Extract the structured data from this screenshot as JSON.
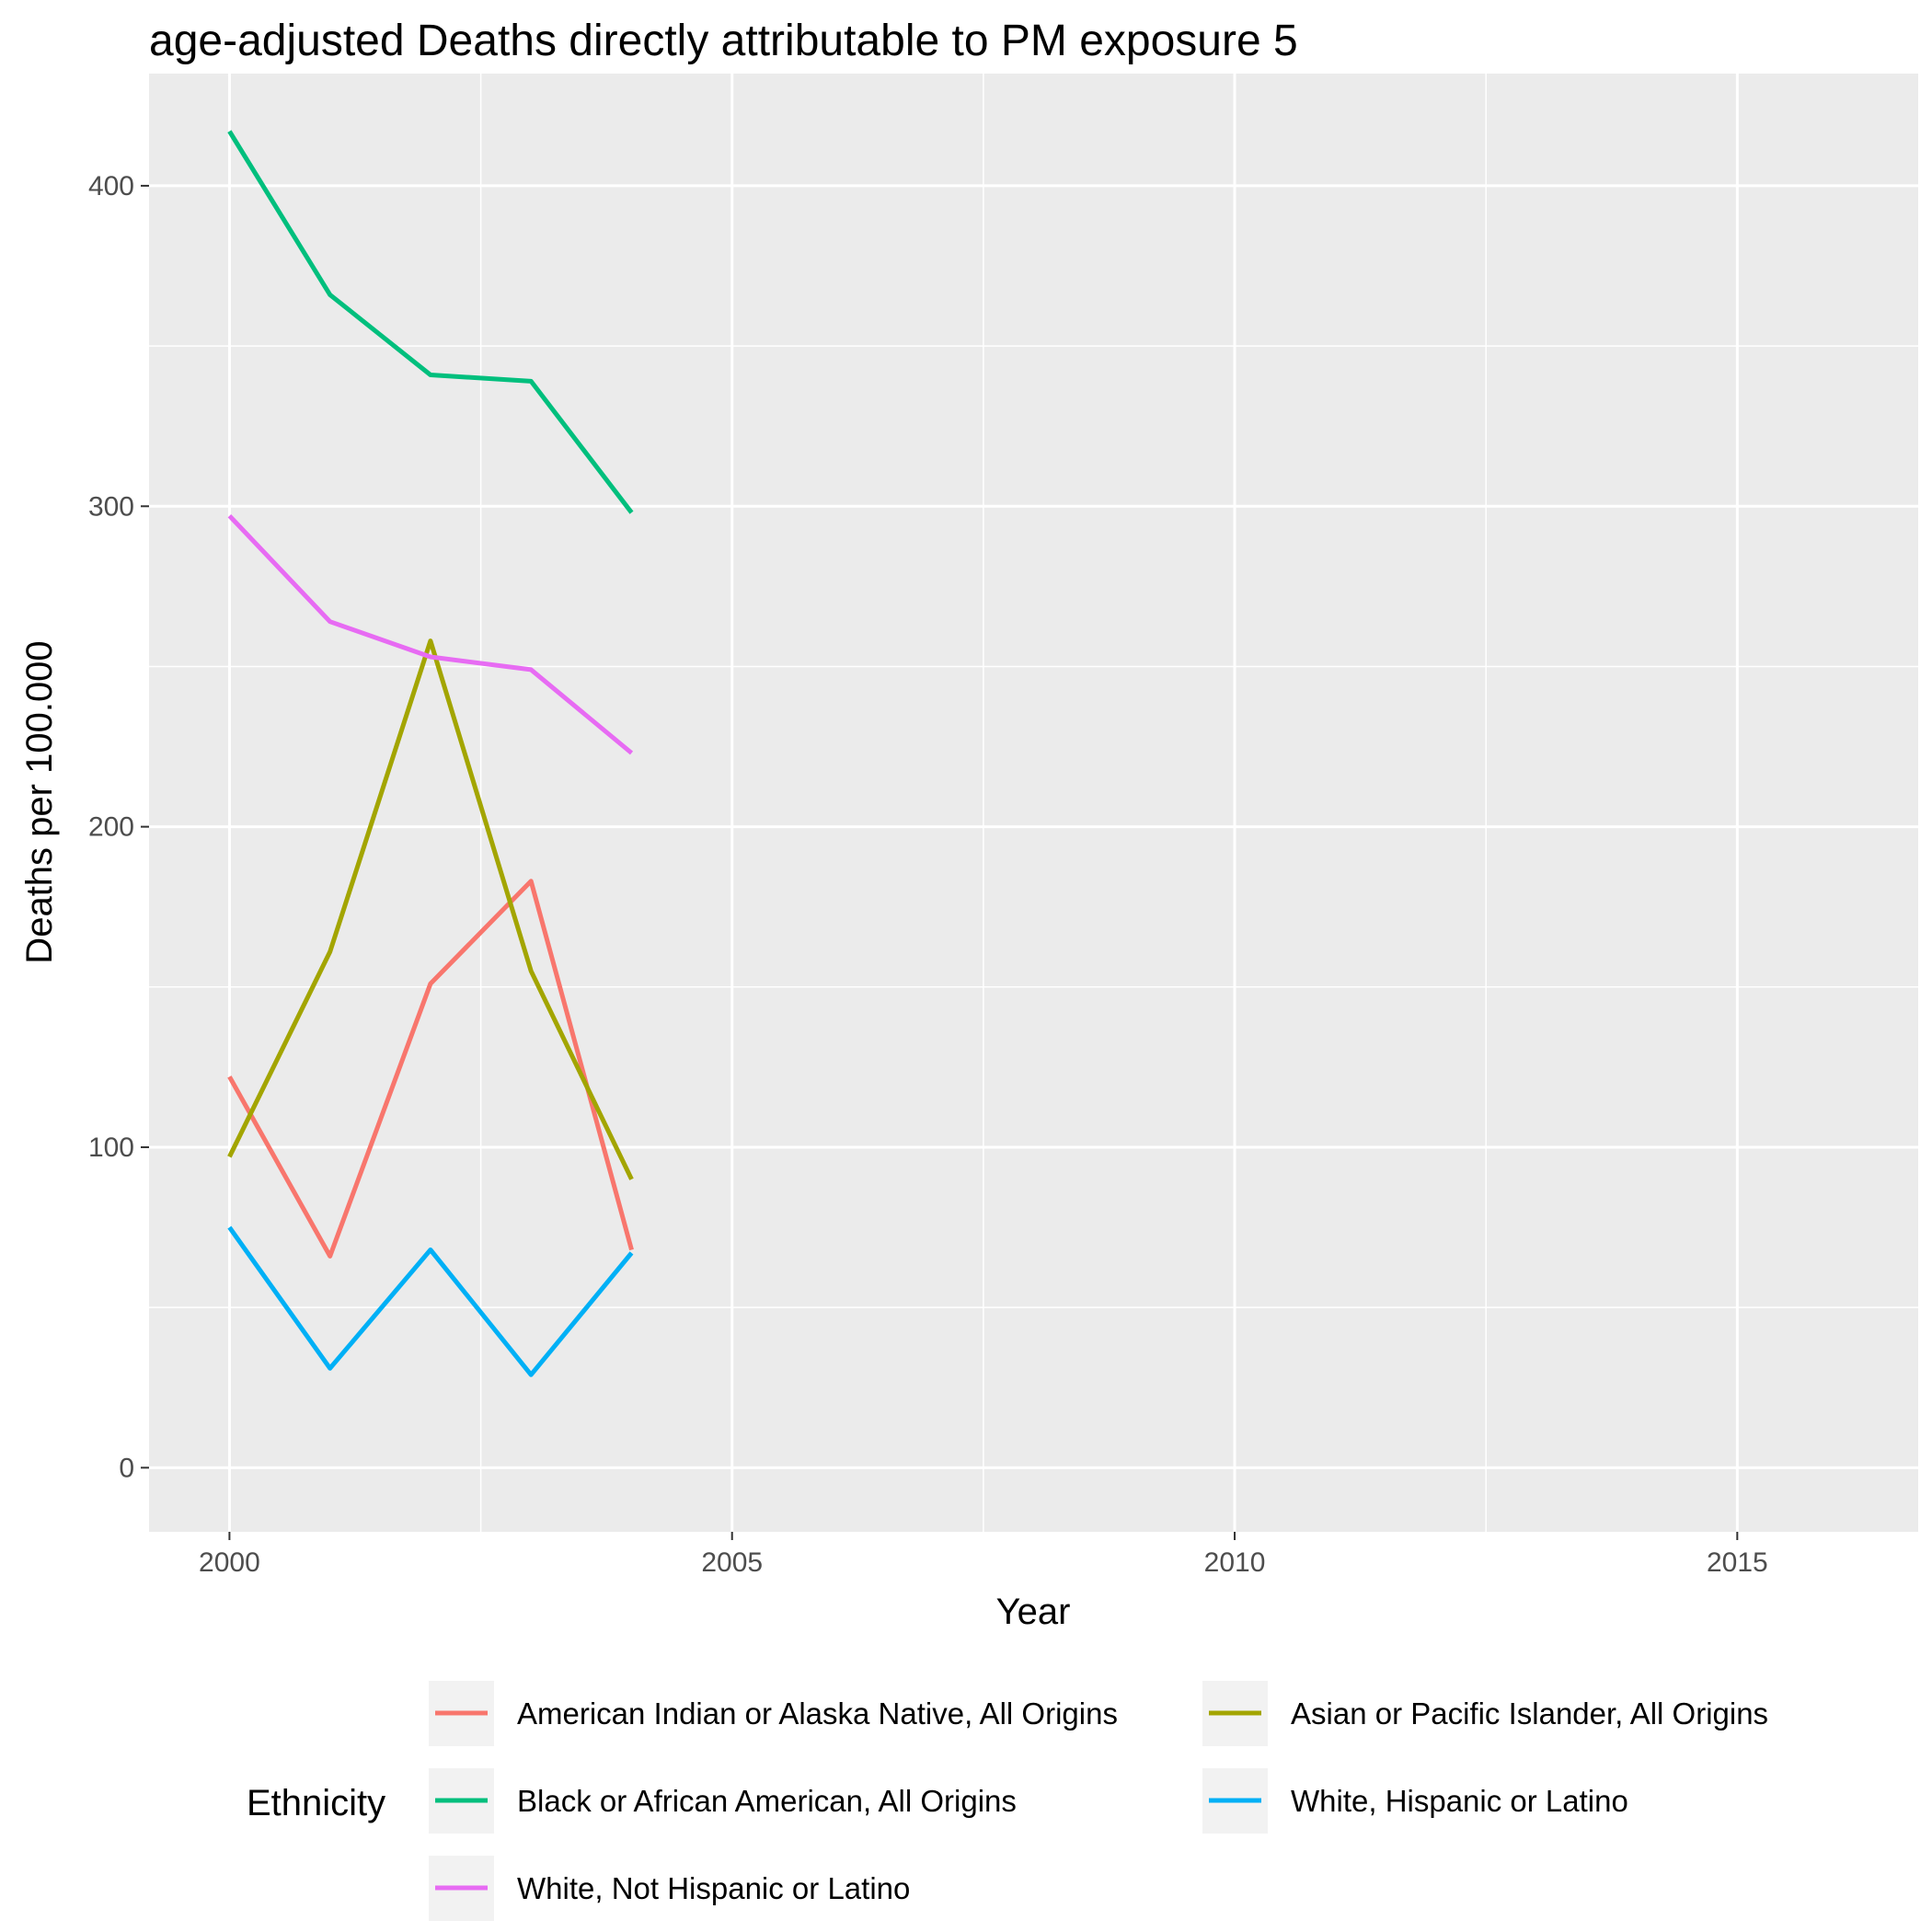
{
  "chart_data": {
    "type": "line",
    "title": "age-adjusted Deaths directly attributable to PM exposure 5",
    "xlabel": "Year",
    "ylabel": "Deaths per 100.000",
    "xlim": [
      1999.2,
      2016.8
    ],
    "ylim": [
      -20,
      435
    ],
    "x_ticks": [
      2000,
      2005,
      2010,
      2015
    ],
    "x_tick_labels": [
      "2000",
      "2005",
      "2010",
      "2015"
    ],
    "x_minor_ticks": [
      2002.5,
      2007.5,
      2012.5
    ],
    "y_ticks": [
      0,
      100,
      200,
      300,
      400
    ],
    "y_tick_labels": [
      "0",
      "100",
      "200",
      "300",
      "400"
    ],
    "y_minor_ticks": [
      50,
      150,
      250,
      350
    ],
    "grid": true,
    "background": "#ebebeb",
    "legend": {
      "title": "Ethnicity",
      "position": "bottom"
    },
    "x": [
      2000,
      2001,
      2002,
      2003,
      2004
    ],
    "series": [
      {
        "name": "American Indian or Alaska Native, All Origins",
        "color": "#F8766D",
        "values": [
          122,
          66,
          151,
          183,
          68
        ]
      },
      {
        "name": "Asian or Pacific Islander, All Origins",
        "color": "#A3A500",
        "values": [
          97,
          161,
          258,
          155,
          90
        ]
      },
      {
        "name": "Black or African American, All Origins",
        "color": "#00BF7D",
        "values": [
          417,
          366,
          341,
          339,
          298
        ]
      },
      {
        "name": "White, Hispanic or Latino",
        "color": "#00B0F6",
        "values": [
          75,
          31,
          68,
          29,
          67
        ]
      },
      {
        "name": "White, Not Hispanic or Latino",
        "color": "#E76BF3",
        "values": [
          297,
          264,
          253,
          249,
          223
        ]
      }
    ]
  }
}
